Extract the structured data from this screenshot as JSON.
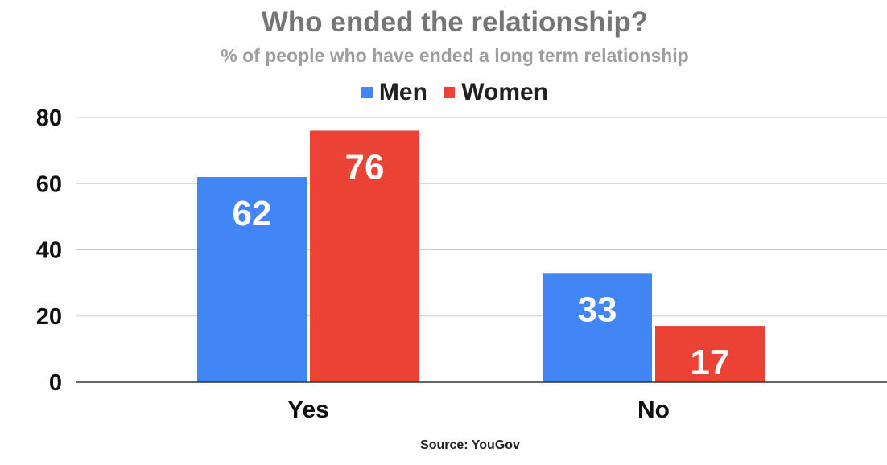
{
  "chart_data": {
    "type": "bar",
    "title": "Who ended the relationship?",
    "subtitle": "% of people who have ended a long term relationship",
    "categories": [
      "Yes",
      "No"
    ],
    "series": [
      {
        "name": "Men",
        "values": [
          62,
          33
        ],
        "color": "#4285f4"
      },
      {
        "name": "Women",
        "values": [
          76,
          17
        ],
        "color": "#ea4335"
      }
    ],
    "ylim": [
      0,
      80
    ],
    "yticks": [
      "0",
      "20",
      "40",
      "60",
      "80"
    ],
    "grid": true,
    "legend_position": "top",
    "data_labels": true,
    "source": "Source: YouGov"
  }
}
